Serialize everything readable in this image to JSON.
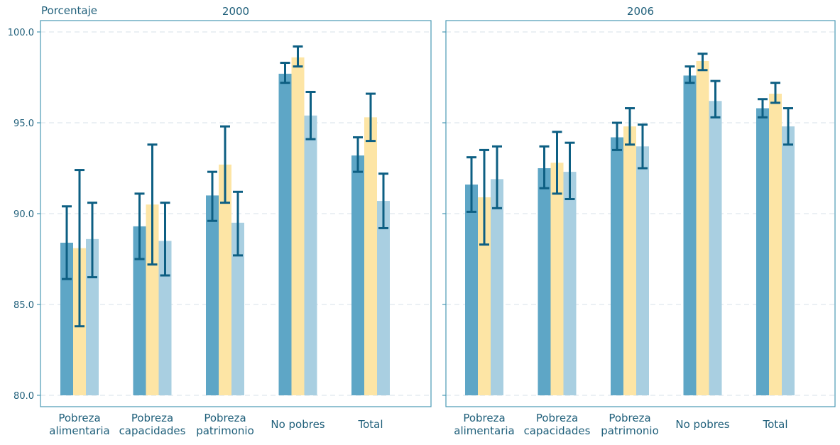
{
  "y_axis_label": "Porcentaje",
  "colors": {
    "series1": "#5ea6c6",
    "series2": "#fde5a5",
    "series3": "#a9cfe1",
    "error_bar": "#0d5f83",
    "frame": "#4a9ab4",
    "grid": "#dfe8ee",
    "text": "#1f5f7a"
  },
  "chart_data": [
    {
      "type": "bar",
      "title": "2000",
      "categories": [
        [
          "Pobreza",
          "alimentaria"
        ],
        [
          "Pobreza",
          "capacidades"
        ],
        [
          "Pobreza",
          "patrimonio"
        ],
        [
          "No pobres"
        ],
        [
          "Total"
        ]
      ],
      "ylim": [
        80.0,
        100.0
      ],
      "yticks": [
        "80.0",
        "85.0",
        "90.0",
        "95.0",
        "100.0"
      ],
      "grid": true,
      "series": [
        {
          "values": [
            88.4,
            89.3,
            91.0,
            97.7,
            93.2
          ],
          "error_low": [
            86.4,
            87.5,
            89.6,
            97.2,
            92.3
          ],
          "error_high": [
            90.4,
            91.1,
            92.3,
            98.3,
            94.2
          ]
        },
        {
          "values": [
            88.1,
            90.5,
            92.7,
            98.6,
            95.3
          ],
          "error_low": [
            83.8,
            87.2,
            90.6,
            98.1,
            94.0
          ],
          "error_high": [
            92.4,
            93.8,
            94.8,
            99.2,
            96.6
          ]
        },
        {
          "values": [
            88.6,
            88.5,
            89.5,
            95.4,
            90.7
          ],
          "error_low": [
            86.5,
            86.6,
            87.7,
            94.1,
            89.2
          ],
          "error_high": [
            90.6,
            90.6,
            91.2,
            96.7,
            92.2
          ]
        }
      ]
    },
    {
      "type": "bar",
      "title": "2006",
      "categories": [
        [
          "Pobreza",
          "alimentaria"
        ],
        [
          "Pobreza",
          "capacidades"
        ],
        [
          "Pobreza",
          "patrimonio"
        ],
        [
          "No pobres"
        ],
        [
          "Total"
        ]
      ],
      "ylim": [
        80.0,
        100.0
      ],
      "yticks": [
        "80.0",
        "85.0",
        "90.0",
        "95.0",
        "100.0"
      ],
      "grid": true,
      "series": [
        {
          "values": [
            91.6,
            92.5,
            94.2,
            97.6,
            95.8
          ],
          "error_low": [
            90.1,
            91.4,
            93.5,
            97.2,
            95.3
          ],
          "error_high": [
            93.1,
            93.7,
            95.0,
            98.1,
            96.3
          ]
        },
        {
          "values": [
            90.9,
            92.8,
            94.8,
            98.4,
            96.6
          ],
          "error_low": [
            88.3,
            91.1,
            93.8,
            97.9,
            96.1
          ],
          "error_high": [
            93.5,
            94.5,
            95.8,
            98.8,
            97.2
          ]
        },
        {
          "values": [
            91.9,
            92.3,
            93.7,
            96.2,
            94.8
          ],
          "error_low": [
            90.3,
            90.8,
            92.5,
            95.3,
            93.8
          ],
          "error_high": [
            93.7,
            93.9,
            94.9,
            97.3,
            95.8
          ]
        }
      ]
    }
  ]
}
